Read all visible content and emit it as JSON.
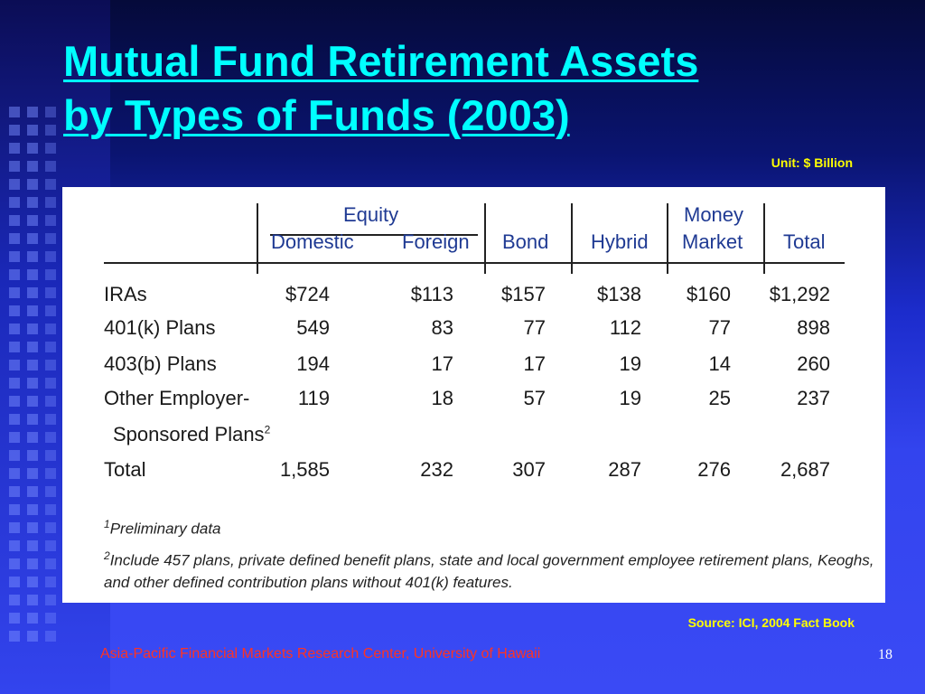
{
  "slide": {
    "title_line1": "Mutual Fund Retirement Assets",
    "title_line2": "by Types of Funds (2003)",
    "unit": "Unit:  $ Billion",
    "source": "Source:  ICI, 2004 Fact Book",
    "footer": "Asia-Pacific Financial Markets Research Center, University of Hawaii",
    "page_number": "18"
  },
  "table": {
    "group_header": "Equity",
    "money_header_line1": "Money",
    "money_header_line2": "Market",
    "columns": [
      "Domestic",
      "Foreign",
      "Bond",
      "Hybrid",
      "Market",
      "Total"
    ],
    "rows": [
      {
        "label": "IRAs",
        "values": [
          "$724",
          "$113",
          "$157",
          "$138",
          "$160",
          "$1,292"
        ]
      },
      {
        "label": "401(k) Plans",
        "values": [
          "549",
          "83",
          "77",
          "112",
          "77",
          "898"
        ]
      },
      {
        "label": "403(b) Plans",
        "values": [
          "194",
          "17",
          "17",
          "19",
          "14",
          "260"
        ]
      },
      {
        "label": "Other Employer-",
        "label2": "Sponsored Plans",
        "label2_sup": "2",
        "values": [
          "119",
          "18",
          "57",
          "19",
          "25",
          "237"
        ]
      },
      {
        "label": "Total",
        "values": [
          "1,585",
          "232",
          "307",
          "287",
          "276",
          "2,687"
        ]
      }
    ],
    "footnote1_mark": "1",
    "footnote1": "Preliminary data",
    "footnote2_mark": "2",
    "footnote2_line1": "Include 457 plans, private defined benefit plans, state and local government employee retirement plans, Keoghs,",
    "footnote2_line2": "and other defined contribution plans without 401(k) features."
  }
}
